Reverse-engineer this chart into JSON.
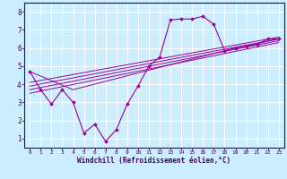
{
  "xlabel": "Windchill (Refroidissement éolien,°C)",
  "bg_color": "#cceeff",
  "grid_color": "#ffffff",
  "line_color": "#990099",
  "xlim": [
    -0.5,
    23.5
  ],
  "ylim": [
    0.5,
    8.5
  ],
  "xticks": [
    0,
    1,
    2,
    3,
    4,
    5,
    6,
    7,
    8,
    9,
    10,
    11,
    12,
    13,
    14,
    15,
    16,
    17,
    18,
    19,
    20,
    21,
    22,
    23
  ],
  "yticks": [
    1,
    2,
    3,
    4,
    5,
    6,
    7,
    8
  ],
  "main_line_x": [
    0,
    1,
    2,
    3,
    4,
    5,
    6,
    7,
    8,
    9,
    10,
    11,
    12,
    13,
    14,
    15,
    16,
    17,
    18,
    19,
    20,
    21,
    22,
    23
  ],
  "main_line_y": [
    4.7,
    3.7,
    2.9,
    3.7,
    3.0,
    1.3,
    1.8,
    0.85,
    1.5,
    2.9,
    3.9,
    5.0,
    5.5,
    7.55,
    7.6,
    7.6,
    7.75,
    7.3,
    5.85,
    6.0,
    6.1,
    6.2,
    6.5,
    6.5
  ],
  "trend_lines": [
    {
      "x": [
        0,
        23
      ],
      "y": [
        3.5,
        6.3
      ]
    },
    {
      "x": [
        0,
        23
      ],
      "y": [
        3.7,
        6.4
      ]
    },
    {
      "x": [
        0,
        23
      ],
      "y": [
        3.9,
        6.5
      ]
    },
    {
      "x": [
        0,
        23
      ],
      "y": [
        4.1,
        6.6
      ]
    },
    {
      "x": [
        0,
        4,
        18,
        23
      ],
      "y": [
        4.7,
        3.7,
        5.85,
        6.5
      ]
    }
  ]
}
